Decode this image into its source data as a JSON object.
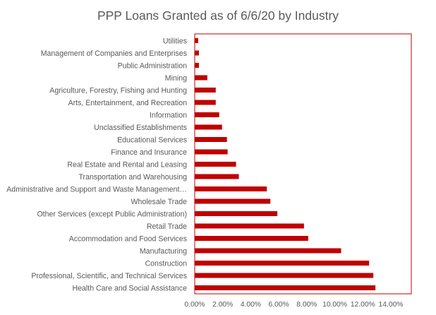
{
  "chart_data": {
    "type": "bar",
    "orientation": "horizontal",
    "title": "PPP Loans Granted as of 6/6/20 by Industry",
    "xlabel": "",
    "ylabel": "",
    "xlim": [
      0,
      0.14
    ],
    "x_tick_values": [
      0,
      0.02,
      0.04,
      0.06,
      0.08,
      0.1,
      0.12,
      0.14
    ],
    "x_tick_labels": [
      "0.00%",
      "2.00%",
      "4.00%",
      "6.00%",
      "8.00%",
      "10.00%",
      "12.00%",
      "14.00%"
    ],
    "grid": false,
    "legend": "none",
    "bar_color": "#c00000",
    "plot_border_color": "#c00000",
    "categories": [
      "Utilities",
      "Management of Companies and Enterprises",
      "Public Administration",
      "Mining",
      "Agriculture, Forestry, Fishing and Hunting",
      "Arts, Entertainment, and Recreation",
      "Information",
      "Unclassified Establishments",
      "Educational Services",
      "Finance and Insurance",
      "Real Estate and Rental and Leasing",
      "Transportation and Warehousing",
      "Administrative and Support and Waste Management…",
      "Wholesale Trade",
      "Other Services (except Public Administration)",
      "Retail Trade",
      "Accommodation and Food Services",
      "Manufacturing",
      "Construction",
      "Professional, Scientific, and Technical Services",
      "Health Care and Social Assistance"
    ],
    "values": [
      0.0025,
      0.003,
      0.003,
      0.009,
      0.015,
      0.015,
      0.0175,
      0.0195,
      0.023,
      0.0235,
      0.0295,
      0.0315,
      0.0515,
      0.054,
      0.059,
      0.078,
      0.081,
      0.1045,
      0.1245,
      0.1275,
      0.129
    ]
  }
}
